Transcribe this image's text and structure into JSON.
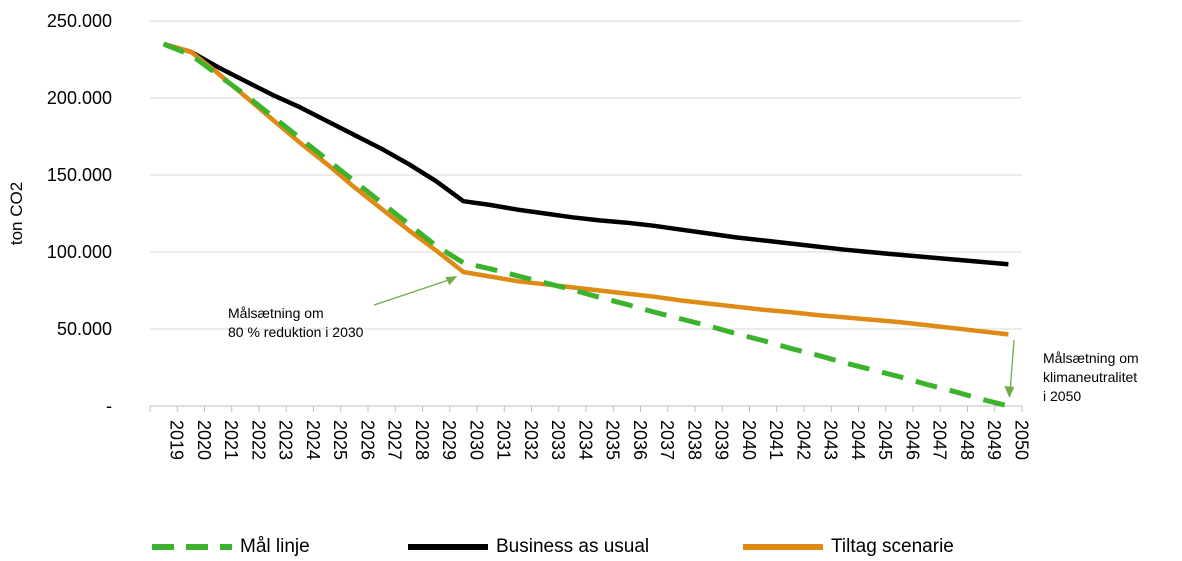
{
  "chart_data": {
    "type": "line",
    "title": "",
    "xlabel": "",
    "ylabel": "ton CO2",
    "ylim": [
      0,
      250000
    ],
    "yticks": [
      {
        "value": 0,
        "label": "-"
      },
      {
        "value": 50000,
        "label": "50.000"
      },
      {
        "value": 100000,
        "label": "100.000"
      },
      {
        "value": 150000,
        "label": "150.000"
      },
      {
        "value": 200000,
        "label": "200.000"
      },
      {
        "value": 250000,
        "label": "250.000"
      }
    ],
    "grid": true,
    "legend_position": "bottom",
    "x": [
      "2019",
      "2020",
      "2021",
      "2022",
      "2023",
      "2024",
      "2025",
      "2026",
      "2027",
      "2028",
      "2029",
      "2030",
      "2031",
      "2032",
      "2033",
      "2034",
      "2035",
      "2036",
      "2037",
      "2038",
      "2039",
      "2040",
      "2041",
      "2042",
      "2043",
      "2044",
      "2045",
      "2046",
      "2047",
      "2048",
      "2049",
      "2050"
    ],
    "series": [
      {
        "name": "Mål linje",
        "color": "#3db32d",
        "style": "dashed",
        "values": [
          235000,
          228000,
          215000,
          202000,
          188000,
          174000,
          160000,
          146000,
          132000,
          118000,
          104000,
          93000,
          89000,
          84500,
          80000,
          75500,
          70500,
          66000,
          61000,
          56500,
          52000,
          47000,
          42500,
          37500,
          33000,
          28000,
          23500,
          19000,
          14000,
          9500,
          4500,
          0
        ]
      },
      {
        "name": "Business as usual",
        "color": "#000000",
        "style": "solid",
        "values": [
          235000,
          230000,
          220000,
          211000,
          202000,
          194000,
          185000,
          176000,
          167000,
          157000,
          146000,
          133000,
          130500,
          127500,
          125000,
          122500,
          120500,
          119000,
          117000,
          114500,
          112000,
          109500,
          107500,
          105500,
          103500,
          101500,
          99800,
          98200,
          96700,
          95100,
          93600,
          92000
        ]
      },
      {
        "name": "Tiltag scenarie",
        "color": "#de8a14",
        "style": "solid",
        "values": [
          235000,
          230000,
          216000,
          201000,
          186000,
          171000,
          157000,
          142000,
          128000,
          114000,
          101000,
          87000,
          84000,
          81000,
          79000,
          77000,
          75000,
          73000,
          71000,
          68500,
          66500,
          64500,
          62500,
          61000,
          59000,
          57500,
          56000,
          54500,
          52500,
          50500,
          48500,
          46500
        ]
      }
    ],
    "annotations": [
      {
        "lines": [
          "Målsætning om",
          "80 % reduktion i 2030"
        ],
        "points_to": {
          "x": "2030",
          "y": 85000
        }
      },
      {
        "lines": [
          "Målsætning om",
          "klimaneutralitet",
          "i 2050"
        ],
        "points_to": {
          "x": "2050",
          "y": 0
        }
      }
    ]
  }
}
